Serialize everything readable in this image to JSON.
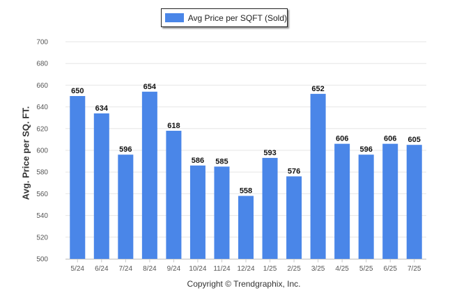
{
  "chart_data": {
    "type": "bar",
    "categories": [
      "5/24",
      "6/24",
      "7/24",
      "8/24",
      "9/24",
      "10/24",
      "11/24",
      "12/24",
      "1/25",
      "2/25",
      "3/25",
      "4/25",
      "5/25",
      "6/25",
      "7/25"
    ],
    "series": [
      {
        "name": "Avg Price per SQFT (Sold)",
        "values": [
          650,
          634,
          596,
          654,
          618,
          586,
          585,
          558,
          593,
          576,
          652,
          606,
          596,
          606,
          605
        ],
        "color": "#4a86e8"
      }
    ],
    "xlabel": "",
    "ylabel": "Avg. Price per SQ. FT.",
    "ylim": [
      500,
      700
    ],
    "yticks": [
      500,
      520,
      540,
      560,
      580,
      600,
      620,
      640,
      660,
      680,
      700
    ],
    "grid": true,
    "legend_position": "top-center",
    "data_labels": true
  },
  "footer": {
    "copyright": "Copyright © Trendgraphix, Inc."
  }
}
